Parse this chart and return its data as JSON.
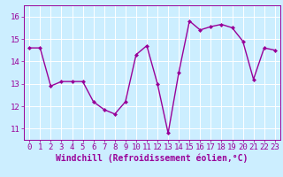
{
  "x": [
    0,
    1,
    2,
    3,
    4,
    5,
    6,
    7,
    8,
    9,
    10,
    11,
    12,
    13,
    14,
    15,
    16,
    17,
    18,
    19,
    20,
    21,
    22,
    23
  ],
  "y": [
    14.6,
    14.6,
    12.9,
    13.1,
    13.1,
    13.1,
    12.2,
    11.85,
    11.65,
    12.2,
    14.3,
    14.7,
    13.0,
    10.8,
    13.5,
    15.8,
    15.4,
    15.55,
    15.65,
    15.5,
    14.9,
    13.2,
    14.6,
    14.5
  ],
  "line_color": "#990099",
  "marker": "D",
  "marker_size": 2,
  "background_color": "#cceeff",
  "grid_color": "#ffffff",
  "xlabel": "Windchill (Refroidissement éolien,°C)",
  "xlim": [
    -0.5,
    23.5
  ],
  "ylim": [
    10.5,
    16.5
  ],
  "yticks": [
    11,
    12,
    13,
    14,
    15,
    16
  ],
  "xticks": [
    0,
    1,
    2,
    3,
    4,
    5,
    6,
    7,
    8,
    9,
    10,
    11,
    12,
    13,
    14,
    15,
    16,
    17,
    18,
    19,
    20,
    21,
    22,
    23
  ],
  "xlabel_fontsize": 7,
  "tick_fontsize": 6.5,
  "line_width": 1.0
}
